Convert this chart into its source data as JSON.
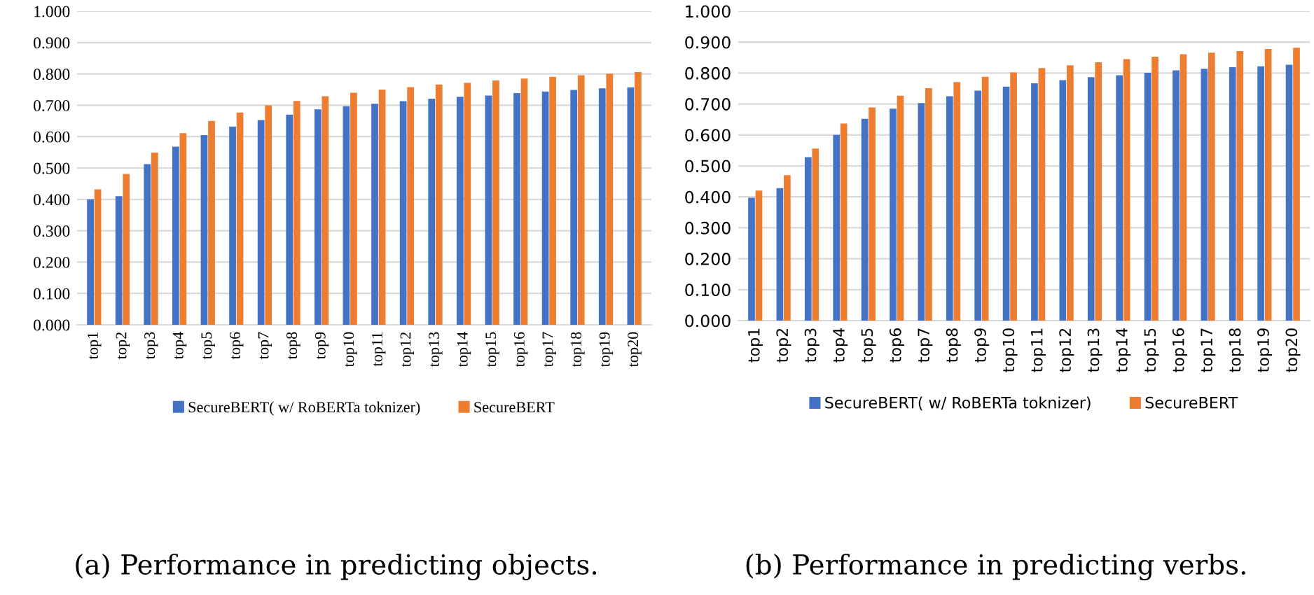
{
  "chart_data": [
    {
      "type": "bar",
      "categories": [
        "top1",
        "top2",
        "top3",
        "top4",
        "top5",
        "top6",
        "top7",
        "top8",
        "top9",
        "top10",
        "top11",
        "top12",
        "top13",
        "top14",
        "top15",
        "top16",
        "top17",
        "top18",
        "top19",
        "top20"
      ],
      "series": [
        {
          "name": "SecureBERT( w/ RoBERTa toknizer)",
          "color": "#4472c4",
          "values": [
            0.4,
            0.41,
            0.512,
            0.568,
            0.605,
            0.632,
            0.653,
            0.67,
            0.687,
            0.697,
            0.705,
            0.713,
            0.721,
            0.727,
            0.731,
            0.739,
            0.744,
            0.749,
            0.754,
            0.757
          ]
        },
        {
          "name": "SecureBERT",
          "color": "#ed7d31",
          "values": [
            0.432,
            0.481,
            0.549,
            0.611,
            0.65,
            0.677,
            0.7,
            0.714,
            0.729,
            0.74,
            0.75,
            0.758,
            0.766,
            0.772,
            0.779,
            0.785,
            0.791,
            0.796,
            0.801,
            0.806
          ]
        }
      ],
      "ylim": [
        0,
        1
      ],
      "yticks": [
        {
          "value": 0,
          "label": "0.000"
        },
        {
          "value": 0.1,
          "label": "0.100"
        },
        {
          "value": 0.2,
          "label": "0.200"
        },
        {
          "value": 0.3,
          "label": "0.300"
        },
        {
          "value": 0.4,
          "label": "0.400"
        },
        {
          "value": 0.5,
          "label": "0.500"
        },
        {
          "value": 0.6,
          "label": "0.600"
        },
        {
          "value": 0.7,
          "label": "0.700"
        },
        {
          "value": 0.8,
          "label": "0.800"
        },
        {
          "value": 0.9,
          "label": "0.900"
        },
        {
          "value": 1,
          "label": "1.000"
        }
      ],
      "grid": "y",
      "legend": "bottom",
      "annotations": [
        "(a) Performance in predicting objects."
      ]
    },
    {
      "type": "bar",
      "categories": [
        "top1",
        "top2",
        "top3",
        "top4",
        "top5",
        "top6",
        "top7",
        "top8",
        "top9",
        "top10",
        "top11",
        "top12",
        "top13",
        "top14",
        "top15",
        "top16",
        "top17",
        "top18",
        "top19",
        "top20"
      ],
      "series": [
        {
          "name": "SecureBERT( w/ RoBERTa toknizer)",
          "color": "#4472c4",
          "values": [
            0.397,
            0.428,
            0.528,
            0.6,
            0.652,
            0.685,
            0.703,
            0.725,
            0.743,
            0.756,
            0.767,
            0.777,
            0.787,
            0.793,
            0.801,
            0.809,
            0.814,
            0.819,
            0.822,
            0.827
          ]
        },
        {
          "name": "SecureBERT",
          "color": "#ed7d31",
          "values": [
            0.42,
            0.47,
            0.556,
            0.637,
            0.689,
            0.727,
            0.751,
            0.771,
            0.788,
            0.802,
            0.816,
            0.825,
            0.835,
            0.845,
            0.853,
            0.861,
            0.866,
            0.871,
            0.878,
            0.882
          ]
        }
      ],
      "ylim": [
        0,
        1
      ],
      "yticks": [
        {
          "value": 0,
          "label": "0.000"
        },
        {
          "value": 0.1,
          "label": "0.100"
        },
        {
          "value": 0.2,
          "label": "0.200"
        },
        {
          "value": 0.3,
          "label": "0.300"
        },
        {
          "value": 0.4,
          "label": "0.400"
        },
        {
          "value": 0.5,
          "label": "0.500"
        },
        {
          "value": 0.6,
          "label": "0.600"
        },
        {
          "value": 0.7,
          "label": "0.700"
        },
        {
          "value": 0.8,
          "label": "0.800"
        },
        {
          "value": 0.9,
          "label": "0.900"
        },
        {
          "value": 1,
          "label": "1.000"
        }
      ],
      "grid": "y",
      "legend": "bottom",
      "annotations": [
        "(b) Performance in predicting verbs."
      ]
    }
  ]
}
